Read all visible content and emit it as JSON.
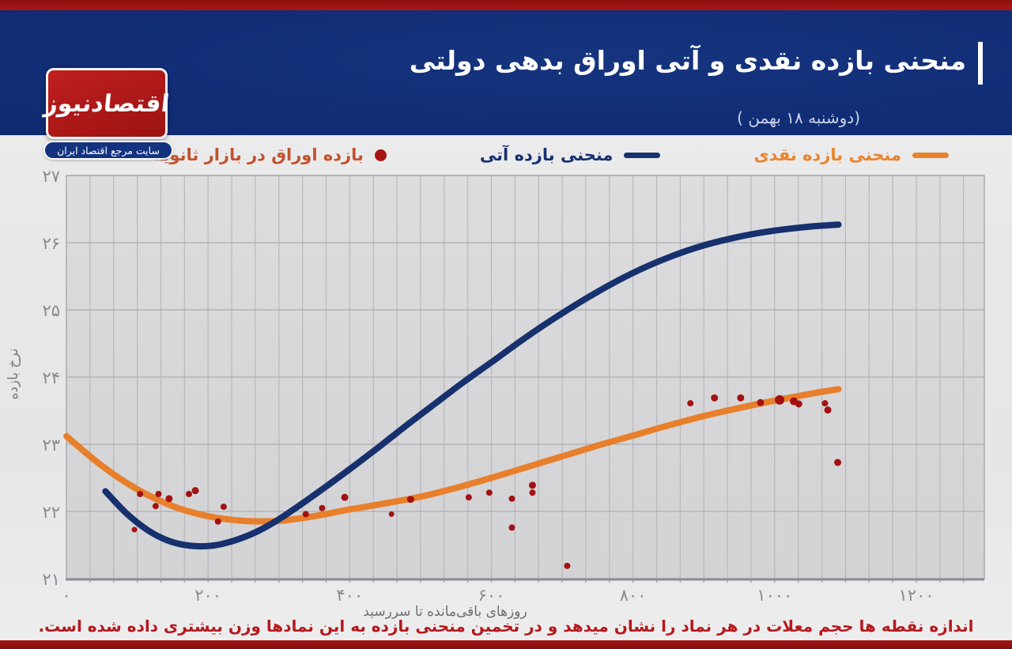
{
  "header": {
    "title": "منحنی بازده نقدی و آتی اوراق بدهی دولتی",
    "date": "(دوشنبه ۱۸ بهمن )",
    "logo": {
      "name": "اقتصادنیوز",
      "tagline": "سایت مرجع اقتصاد ایران"
    }
  },
  "legend": [
    {
      "label": "منحنی بازده نقدی",
      "type": "line",
      "color": "#e8832d",
      "text_color": "#e8832d"
    },
    {
      "label": "منحنی بازده آتی",
      "type": "line",
      "color": "#18316f",
      "text_color": "#18316f"
    },
    {
      "label": "بازده اوراق در بازار ثانویه",
      "type": "dot",
      "color": "#a81414",
      "text_color": "#c2522d"
    }
  ],
  "caption": "اندازه نقطه ها حجم معلات در هر نماد را نشان میدهد و در تخمین منحنی بازده به این نمادها وزن بیشتری داده شده است.",
  "chart_data": {
    "type": "line",
    "title": "",
    "xlabel": "روزهای باقی‌مانده تا سررسید",
    "ylabel": "نرخ بازده",
    "xlim": [
      0,
      1296
    ],
    "ylim": [
      21,
      27
    ],
    "grid": true,
    "x_ticks": [
      {
        "value": 0,
        "label": "۰"
      },
      {
        "value": 200,
        "label": "۲۰۰"
      },
      {
        "value": 400,
        "label": "۴۰۰"
      },
      {
        "value": 600,
        "label": "۶۰۰"
      },
      {
        "value": 800,
        "label": "۸۰۰"
      },
      {
        "value": 1000,
        "label": "۱۰۰۰"
      },
      {
        "value": 1200,
        "label": "۱۲۰۰"
      }
    ],
    "y_ticks": [
      {
        "value": 21,
        "label": "۲۱"
      },
      {
        "value": 22,
        "label": "۲۲"
      },
      {
        "value": 23,
        "label": "۲۳"
      },
      {
        "value": 24,
        "label": "۲۴"
      },
      {
        "value": 25,
        "label": "۲۵"
      },
      {
        "value": 26,
        "label": "۲۶"
      },
      {
        "value": 27,
        "label": "۲۷"
      }
    ],
    "series": [
      {
        "name": "منحنی بازده نقدی",
        "color": "#e87f2b",
        "width": 8,
        "points": [
          [
            0,
            23.12
          ],
          [
            50,
            22.68
          ],
          [
            100,
            22.33
          ],
          [
            150,
            22.08
          ],
          [
            200,
            21.93
          ],
          [
            250,
            21.86
          ],
          [
            300,
            21.86
          ],
          [
            350,
            21.93
          ],
          [
            400,
            22.03
          ],
          [
            450,
            22.12
          ],
          [
            500,
            22.22
          ],
          [
            550,
            22.35
          ],
          [
            600,
            22.5
          ],
          [
            650,
            22.66
          ],
          [
            700,
            22.82
          ],
          [
            750,
            22.98
          ],
          [
            800,
            23.13
          ],
          [
            850,
            23.28
          ],
          [
            900,
            23.42
          ],
          [
            950,
            23.54
          ],
          [
            1000,
            23.65
          ],
          [
            1050,
            23.75
          ],
          [
            1090,
            23.82
          ]
        ]
      },
      {
        "name": "منحنی بازده آتی",
        "color": "#17306e",
        "width": 8,
        "points": [
          [
            55,
            22.3
          ],
          [
            85,
            21.97
          ],
          [
            115,
            21.72
          ],
          [
            145,
            21.56
          ],
          [
            175,
            21.49
          ],
          [
            205,
            21.49
          ],
          [
            235,
            21.56
          ],
          [
            265,
            21.68
          ],
          [
            295,
            21.85
          ],
          [
            325,
            22.06
          ],
          [
            360,
            22.32
          ],
          [
            400,
            22.63
          ],
          [
            440,
            22.95
          ],
          [
            480,
            23.28
          ],
          [
            520,
            23.6
          ],
          [
            560,
            23.92
          ],
          [
            600,
            24.22
          ],
          [
            650,
            24.6
          ],
          [
            700,
            24.95
          ],
          [
            750,
            25.27
          ],
          [
            800,
            25.55
          ],
          [
            850,
            25.78
          ],
          [
            900,
            25.96
          ],
          [
            950,
            26.09
          ],
          [
            1000,
            26.18
          ],
          [
            1050,
            26.24
          ],
          [
            1090,
            26.27
          ]
        ]
      }
    ],
    "scatter": {
      "name": "بازده اوراق در بازار ثانویه",
      "color": "#a31212",
      "points": [
        [
          104,
          22.26,
          4
        ],
        [
          96,
          21.73,
          3.5
        ],
        [
          130,
          22.26,
          4
        ],
        [
          126,
          22.08,
          4
        ],
        [
          145,
          22.19,
          4.5
        ],
        [
          173,
          22.26,
          4
        ],
        [
          182,
          22.31,
          4.5
        ],
        [
          214,
          21.85,
          4
        ],
        [
          222,
          22.07,
          4
        ],
        [
          338,
          21.96,
          4
        ],
        [
          361,
          22.05,
          4
        ],
        [
          393,
          22.21,
          4.5
        ],
        [
          459,
          21.96,
          3.5
        ],
        [
          486,
          22.18,
          4.5
        ],
        [
          568,
          22.21,
          4
        ],
        [
          597,
          22.28,
          4
        ],
        [
          629,
          22.19,
          4
        ],
        [
          629,
          21.76,
          4
        ],
        [
          658,
          22.39,
          4.5
        ],
        [
          658,
          22.28,
          4
        ],
        [
          707,
          21.19,
          4
        ],
        [
          881,
          23.61,
          4
        ],
        [
          915,
          23.69,
          4.5
        ],
        [
          952,
          23.69,
          4.5
        ],
        [
          980,
          23.62,
          4.5
        ],
        [
          1007,
          23.66,
          6
        ],
        [
          1027,
          23.64,
          5
        ],
        [
          1034,
          23.6,
          4.5
        ],
        [
          1071,
          23.61,
          4
        ],
        [
          1075,
          23.51,
          4.5
        ],
        [
          1089,
          22.73,
          4.5
        ]
      ]
    }
  }
}
